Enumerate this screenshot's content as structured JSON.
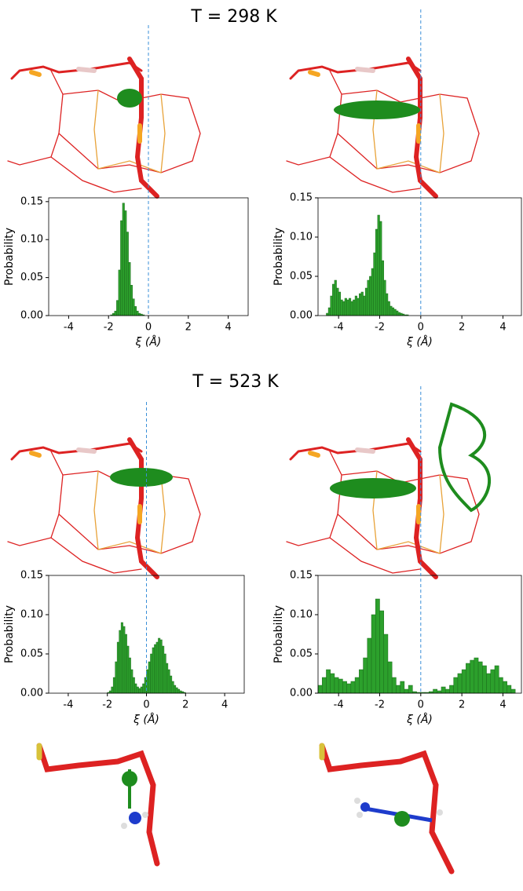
{
  "headings": [
    "T = 298 K",
    "T = 523 K"
  ],
  "chart_data": [
    {
      "type": "histogram",
      "color": "#2ca02c",
      "edgecolor": "#1b6b1b",
      "xlabel": "ξ (Å)",
      "ylabel": "Probability",
      "xlim": [
        -5,
        5
      ],
      "ylim": [
        0,
        0.155
      ],
      "xticks": [
        -4,
        -2,
        0,
        2,
        4
      ],
      "yticks": [
        {
          "value": 0,
          "label": "0.00"
        },
        {
          "value": 0.05,
          "label": "0.05"
        },
        {
          "value": 0.1,
          "label": "0.10"
        },
        {
          "value": 0.15,
          "label": "0.15"
        }
      ],
      "vline": 0,
      "bins": [
        -1.9,
        -1.8,
        -1.7,
        -1.6,
        -1.5,
        -1.4,
        -1.3,
        -1.2,
        -1.1,
        -1.0,
        -0.9,
        -0.8,
        -0.7,
        -0.6,
        -0.5,
        -0.4,
        -0.3,
        -0.2
      ],
      "values": [
        0.001,
        0.003,
        0.006,
        0.02,
        0.06,
        0.125,
        0.148,
        0.138,
        0.11,
        0.07,
        0.04,
        0.022,
        0.012,
        0.006,
        0.003,
        0.002,
        0.001
      ]
    },
    {
      "type": "histogram",
      "color": "#2ca02c",
      "edgecolor": "#1b6b1b",
      "xlabel": "ξ (Å)",
      "ylabel": "Probability",
      "xlim": [
        -5,
        4.9
      ],
      "ylim": [
        0,
        0.15
      ],
      "xticks": [
        -4,
        -2,
        0,
        2,
        4
      ],
      "yticks": [
        {
          "value": 0,
          "label": "0.00"
        },
        {
          "value": 0.05,
          "label": "0.05"
        },
        {
          "value": 0.1,
          "label": "0.10"
        },
        {
          "value": 0.15,
          "label": "0.15"
        }
      ],
      "vline": 0,
      "bins": [
        -4.6,
        -4.5,
        -4.4,
        -4.3,
        -4.2,
        -4.1,
        -4.0,
        -3.9,
        -3.8,
        -3.7,
        -3.6,
        -3.5,
        -3.4,
        -3.3,
        -3.2,
        -3.1,
        -3.0,
        -2.9,
        -2.8,
        -2.7,
        -2.6,
        -2.5,
        -2.4,
        -2.3,
        -2.2,
        -2.1,
        -2.0,
        -1.9,
        -1.8,
        -1.7,
        -1.6,
        -1.5,
        -1.4,
        -1.3,
        -1.2,
        -1.1,
        -1.0,
        -0.9,
        -0.8,
        -0.7,
        -0.6
      ],
      "values": [
        0.003,
        0.01,
        0.025,
        0.04,
        0.045,
        0.035,
        0.03,
        0.02,
        0.018,
        0.022,
        0.02,
        0.022,
        0.018,
        0.02,
        0.025,
        0.022,
        0.028,
        0.03,
        0.025,
        0.035,
        0.045,
        0.05,
        0.06,
        0.08,
        0.11,
        0.128,
        0.12,
        0.07,
        0.045,
        0.028,
        0.018,
        0.012,
        0.01,
        0.008,
        0.006,
        0.004,
        0.003,
        0.002,
        0.001,
        0.001
      ]
    },
    {
      "type": "histogram",
      "color": "#2ca02c",
      "edgecolor": "#1b6b1b",
      "xlabel": "ξ (Å)",
      "ylabel": "Probability",
      "xlim": [
        -5,
        5
      ],
      "ylim": [
        0,
        0.15
      ],
      "xticks": [
        -4,
        -2,
        0,
        2,
        4
      ],
      "yticks": [
        {
          "value": 0,
          "label": "0.00"
        },
        {
          "value": 0.05,
          "label": "0.05"
        },
        {
          "value": 0.1,
          "label": "0.10"
        },
        {
          "value": 0.15,
          "label": "0.15"
        }
      ],
      "vline": 0,
      "bins": [
        -2.0,
        -1.9,
        -1.8,
        -1.7,
        -1.6,
        -1.5,
        -1.4,
        -1.3,
        -1.2,
        -1.1,
        -1.0,
        -0.9,
        -0.8,
        -0.7,
        -0.6,
        -0.5,
        -0.4,
        -0.3,
        -0.2,
        -0.1,
        0.0,
        0.1,
        0.2,
        0.3,
        0.4,
        0.5,
        0.6,
        0.7,
        0.8,
        0.9,
        1.0,
        1.1,
        1.2,
        1.3,
        1.4,
        1.5,
        1.6,
        1.7,
        1.8,
        1.9,
        2.0
      ],
      "values": [
        0.001,
        0.003,
        0.008,
        0.02,
        0.04,
        0.065,
        0.08,
        0.09,
        0.085,
        0.075,
        0.06,
        0.045,
        0.03,
        0.02,
        0.012,
        0.008,
        0.006,
        0.008,
        0.012,
        0.02,
        0.03,
        0.04,
        0.05,
        0.058,
        0.062,
        0.065,
        0.07,
        0.068,
        0.06,
        0.05,
        0.038,
        0.03,
        0.022,
        0.015,
        0.01,
        0.007,
        0.005,
        0.003,
        0.002,
        0.001
      ]
    },
    {
      "type": "histogram",
      "color": "#2ca02c",
      "edgecolor": "#1b6b1b",
      "xlabel": "ξ (Å)",
      "ylabel": "Probability",
      "xlim": [
        -5,
        4.9
      ],
      "ylim": [
        0,
        0.15
      ],
      "xticks": [
        -4,
        -2,
        0,
        2,
        4
      ],
      "yticks": [
        {
          "value": 0,
          "label": "0.00"
        },
        {
          "value": 0.05,
          "label": "0.05"
        },
        {
          "value": 0.1,
          "label": "0.10"
        },
        {
          "value": 0.15,
          "label": "0.15"
        }
      ],
      "vline": 0,
      "bins": [
        -5.0,
        -4.8,
        -4.6,
        -4.4,
        -4.2,
        -4.0,
        -3.8,
        -3.6,
        -3.4,
        -3.2,
        -3.0,
        -2.8,
        -2.6,
        -2.4,
        -2.2,
        -2.0,
        -1.8,
        -1.6,
        -1.4,
        -1.2,
        -1.0,
        -0.8,
        -0.6,
        -0.4,
        -0.2,
        0.0,
        0.2,
        0.4,
        0.6,
        0.8,
        1.0,
        1.2,
        1.4,
        1.6,
        1.8,
        2.0,
        2.2,
        2.4,
        2.6,
        2.8,
        3.0,
        3.2,
        3.4,
        3.6,
        3.8,
        4.0,
        4.2,
        4.4,
        4.6
      ],
      "values": [
        0.01,
        0.02,
        0.03,
        0.025,
        0.02,
        0.018,
        0.015,
        0.012,
        0.015,
        0.02,
        0.03,
        0.045,
        0.07,
        0.1,
        0.12,
        0.105,
        0.075,
        0.04,
        0.02,
        0.01,
        0.015,
        0.005,
        0.01,
        0.002,
        0.001,
        0.001,
        0.001,
        0.002,
        0.005,
        0.003,
        0.008,
        0.005,
        0.01,
        0.02,
        0.025,
        0.03,
        0.038,
        0.042,
        0.045,
        0.04,
        0.035,
        0.025,
        0.03,
        0.035,
        0.02,
        0.015,
        0.01,
        0.005
      ]
    }
  ]
}
